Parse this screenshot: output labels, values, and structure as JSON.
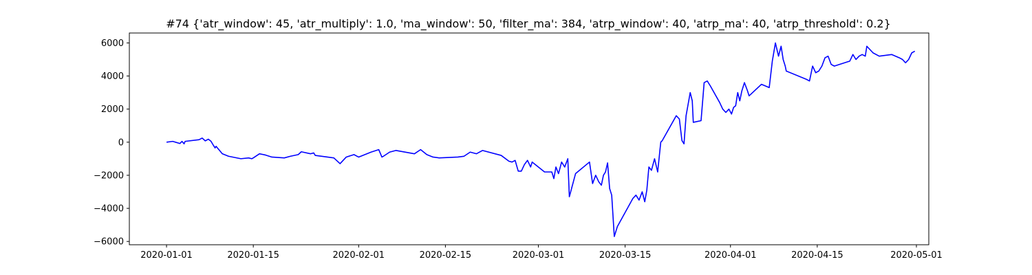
{
  "chart_data": {
    "type": "line",
    "title": "#74 {'atr_window': 45, 'atr_multiply': 1.0, 'ma_window': 50, 'filter_ma': 384, 'atrp_window': 40, 'atrp_ma': 40, 'atrp_threshold': 0.2}",
    "xlabel": "",
    "ylabel": "",
    "xlim": [
      "2019-12-26",
      "2020-05-03"
    ],
    "ylim": [
      -6200,
      6600
    ],
    "x_ticks": [
      "2020-01-01",
      "2020-01-15",
      "2020-02-01",
      "2020-02-15",
      "2020-03-01",
      "2020-03-15",
      "2020-04-01",
      "2020-04-15",
      "2020-05-01"
    ],
    "y_ticks": [
      -6000,
      -4000,
      -2000,
      0,
      2000,
      4000,
      6000
    ],
    "grid": false,
    "series": [
      {
        "color": "#0000ff",
        "x": [
          "2020-01-01",
          "2020-01-02",
          "2020-01-03",
          "2020-01-03",
          "2020-01-03",
          "2020-01-04",
          "2020-01-06",
          "2020-01-06",
          "2020-01-07",
          "2020-01-07",
          "2020-01-08",
          "2020-01-08",
          "2020-01-08",
          "2020-01-09",
          "2020-01-10",
          "2020-01-11",
          "2020-01-13",
          "2020-01-14",
          "2020-01-14",
          "2020-01-15",
          "2020-01-16",
          "2020-01-17",
          "2020-01-18",
          "2020-01-20",
          "2020-01-21",
          "2020-01-22",
          "2020-01-22",
          "2020-01-23",
          "2020-01-24",
          "2020-01-24",
          "2020-01-25",
          "2020-01-28",
          "2020-01-29",
          "2020-01-30",
          "2020-01-31",
          "2020-01-31",
          "2020-02-01",
          "2020-02-03",
          "2020-02-04",
          "2020-02-04",
          "2020-02-05",
          "2020-02-06",
          "2020-02-07",
          "2020-02-10",
          "2020-02-11",
          "2020-02-12",
          "2020-02-13",
          "2020-02-14",
          "2020-02-17",
          "2020-02-18",
          "2020-02-19",
          "2020-02-20",
          "2020-02-21",
          "2020-02-24",
          "2020-02-25",
          "2020-02-25",
          "2020-02-26",
          "2020-02-26",
          "2020-02-27",
          "2020-02-27",
          "2020-02-28",
          "2020-02-28",
          "2020-02-29",
          "2020-03-02",
          "2020-03-03",
          "2020-03-03",
          "2020-03-03",
          "2020-03-04",
          "2020-03-04",
          "2020-03-05",
          "2020-03-05",
          "2020-03-06",
          "2020-03-07",
          "2020-03-09",
          "2020-03-09",
          "2020-03-10",
          "2020-03-10",
          "2020-03-11",
          "2020-03-11",
          "2020-03-11",
          "2020-03-12",
          "2020-03-12",
          "2020-03-12",
          "2020-03-13",
          "2020-03-13",
          "2020-03-16",
          "2020-03-16",
          "2020-03-17",
          "2020-03-17",
          "2020-03-18",
          "2020-03-18",
          "2020-03-18",
          "2020-03-19",
          "2020-03-19",
          "2020-03-20",
          "2020-03-20",
          "2020-03-21",
          "2020-03-23",
          "2020-03-23",
          "2020-03-24",
          "2020-03-24",
          "2020-03-24",
          "2020-03-25",
          "2020-03-25",
          "2020-03-25",
          "2020-03-26",
          "2020-03-27",
          "2020-03-27",
          "2020-03-28",
          "2020-03-28",
          "2020-03-30",
          "2020-03-30",
          "2020-03-31",
          "2020-03-31",
          "2020-04-01",
          "2020-04-01",
          "2020-04-01",
          "2020-04-02",
          "2020-04-02",
          "2020-04-02",
          "2020-04-03",
          "2020-04-03",
          "2020-04-04",
          "2020-04-06",
          "2020-04-07",
          "2020-04-07",
          "2020-04-08",
          "2020-04-08",
          "2020-04-09",
          "2020-04-09",
          "2020-04-09",
          "2020-04-10",
          "2020-04-13",
          "2020-04-13",
          "2020-04-14",
          "2020-04-14",
          "2020-04-15",
          "2020-04-15",
          "2020-04-16",
          "2020-04-16",
          "2020-04-17",
          "2020-04-17",
          "2020-04-20",
          "2020-04-20",
          "2020-04-21",
          "2020-04-21",
          "2020-04-22",
          "2020-04-22",
          "2020-04-23",
          "2020-04-24",
          "2020-04-25",
          "2020-04-27",
          "2020-04-28",
          "2020-04-28",
          "2020-04-29",
          "2020-04-29",
          "2020-04-30",
          "2020-04-30"
        ],
        "y": [
          0,
          50,
          -80,
          50,
          -100,
          50,
          150,
          250,
          80,
          180,
          60,
          -150,
          -350,
          -250,
          -700,
          -850,
          -1000,
          -950,
          -1000,
          -950,
          -700,
          -780,
          -900,
          -950,
          -850,
          -750,
          -580,
          -600,
          -700,
          -650,
          -800,
          -950,
          -1300,
          -900,
          -750,
          -850,
          -900,
          -600,
          -450,
          -900,
          -850,
          -600,
          -500,
          -700,
          -450,
          -750,
          -900,
          -950,
          -900,
          -850,
          -600,
          -700,
          -500,
          -800,
          -1150,
          -1200,
          -1100,
          -1750,
          -1750,
          -1350,
          -1100,
          -1500,
          -1200,
          -1800,
          -1800,
          -2200,
          -1500,
          -1900,
          -1200,
          -1500,
          -1000,
          -3300,
          -1900,
          -1200,
          -2500,
          -2000,
          -2400,
          -2600,
          -2000,
          -1800,
          -1250,
          -2800,
          -3200,
          -5700,
          -5100,
          -3400,
          -3200,
          -3500,
          -3000,
          -3600,
          -2900,
          -1500,
          -1700,
          -1000,
          -1800,
          0,
          100,
          1600,
          1400,
          100,
          -100,
          1600,
          2300,
          3000,
          2500,
          1200,
          1300,
          3600,
          3700,
          3400,
          2400,
          2000,
          1800,
          2000,
          1700,
          2100,
          2200,
          3000,
          2500,
          3100,
          3600,
          3100,
          2800,
          3500,
          3300,
          4900,
          6000,
          5200,
          5800,
          5000,
          4600,
          4300,
          3800,
          3700,
          4600,
          4200,
          4300,
          4600,
          5100,
          5200,
          4700,
          4600,
          4900,
          5300,
          5000,
          5200,
          5300,
          5200,
          5800,
          5400,
          5200,
          5300,
          5100,
          5000,
          4800,
          5000,
          5400,
          5500
        ]
      }
    ]
  }
}
